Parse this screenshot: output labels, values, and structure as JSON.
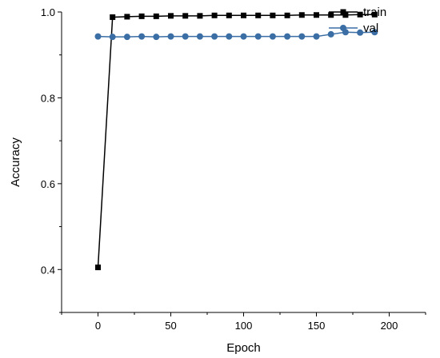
{
  "chart_data": {
    "type": "line",
    "xlabel": "Epoch",
    "ylabel": "Accuracy",
    "xlim": [
      -25,
      225
    ],
    "ylim": [
      0.3,
      1.0
    ],
    "xticks": [
      0,
      50,
      100,
      150,
      200
    ],
    "yticks": [
      0.4,
      0.6,
      0.8,
      1.0
    ],
    "x_tick_labels": [
      "0",
      "50",
      "100",
      "150",
      "200"
    ],
    "y_tick_labels": [
      "0.4",
      "0.6",
      "0.8",
      "1.0"
    ],
    "grid": false,
    "legend_position": "top-right",
    "series": [
      {
        "name": "train",
        "color": "#000000",
        "marker": "square",
        "x": [
          0,
          10,
          20,
          30,
          40,
          50,
          60,
          70,
          80,
          90,
          100,
          110,
          120,
          130,
          140,
          150,
          160,
          170,
          180,
          190
        ],
        "y": [
          0.405,
          0.988,
          0.989,
          0.99,
          0.99,
          0.991,
          0.991,
          0.991,
          0.992,
          0.992,
          0.992,
          0.992,
          0.992,
          0.992,
          0.993,
          0.993,
          0.993,
          0.993,
          0.994,
          0.994
        ]
      },
      {
        "name": "val",
        "color": "#3A6EA5",
        "marker": "circle",
        "x": [
          0,
          10,
          20,
          30,
          40,
          50,
          60,
          70,
          80,
          90,
          100,
          110,
          120,
          130,
          140,
          150,
          160,
          170,
          180,
          190
        ],
        "y": [
          0.943,
          0.942,
          0.942,
          0.943,
          0.942,
          0.943,
          0.943,
          0.943,
          0.943,
          0.943,
          0.943,
          0.943,
          0.943,
          0.943,
          0.943,
          0.943,
          0.948,
          0.953,
          0.952,
          0.953
        ]
      }
    ]
  }
}
